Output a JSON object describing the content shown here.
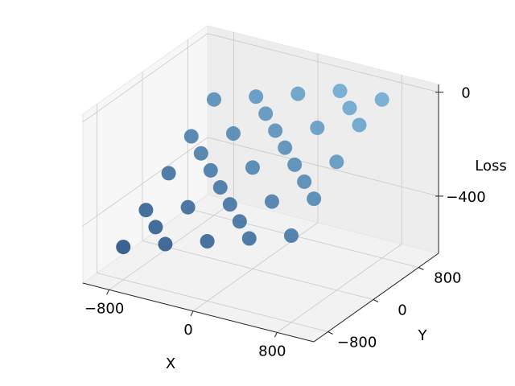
{
  "chart_data": {
    "type": "scatter3d",
    "xlabel": "X",
    "ylabel": "Y",
    "zlabel": "Loss",
    "xlim": [
      -1050,
      1150
    ],
    "ylim": [
      -1050,
      1150
    ],
    "zlim": [
      -620,
      30
    ],
    "xticks": [
      {
        "value": -800,
        "label": "−800"
      },
      0,
      800
    ],
    "yticks": [
      {
        "value": -800,
        "label": "−800"
      },
      0,
      800
    ],
    "zticks": [
      {
        "value": -400,
        "label": "−400"
      },
      0
    ],
    "grid": true,
    "cmap": [
      "#08306b",
      "#6baed6"
    ],
    "series": [
      {
        "x": [
          -800,
          -800,
          -800,
          -800,
          -800,
          -400,
          -400,
          -400,
          -400,
          -400,
          0,
          0,
          0,
          0,
          0,
          400,
          400,
          400,
          400,
          400,
          800,
          800,
          800,
          800,
          800,
          -600,
          -200,
          200,
          600,
          -600,
          200,
          600,
          -200
        ],
        "y": [
          -800,
          -400,
          0,
          400,
          800,
          -800,
          -400,
          0,
          400,
          800,
          -800,
          -400,
          0,
          400,
          800,
          -800,
          -400,
          0,
          400,
          800,
          -800,
          -400,
          0,
          400,
          800,
          -600,
          -200,
          200,
          600,
          200,
          -600,
          -200,
          600
        ],
        "z": [
          -494,
          -414,
          -334,
          -254,
          -174,
          -442,
          -362,
          -282,
          -202,
          -122,
          -390,
          -310,
          -230,
          -150,
          -70,
          -338,
          -258,
          -178,
          -98,
          -18,
          -286,
          -206,
          -126,
          -46,
          -10,
          -428,
          -296,
          -164,
          -32,
          -268,
          -324,
          -192,
          -136
        ]
      }
    ]
  }
}
